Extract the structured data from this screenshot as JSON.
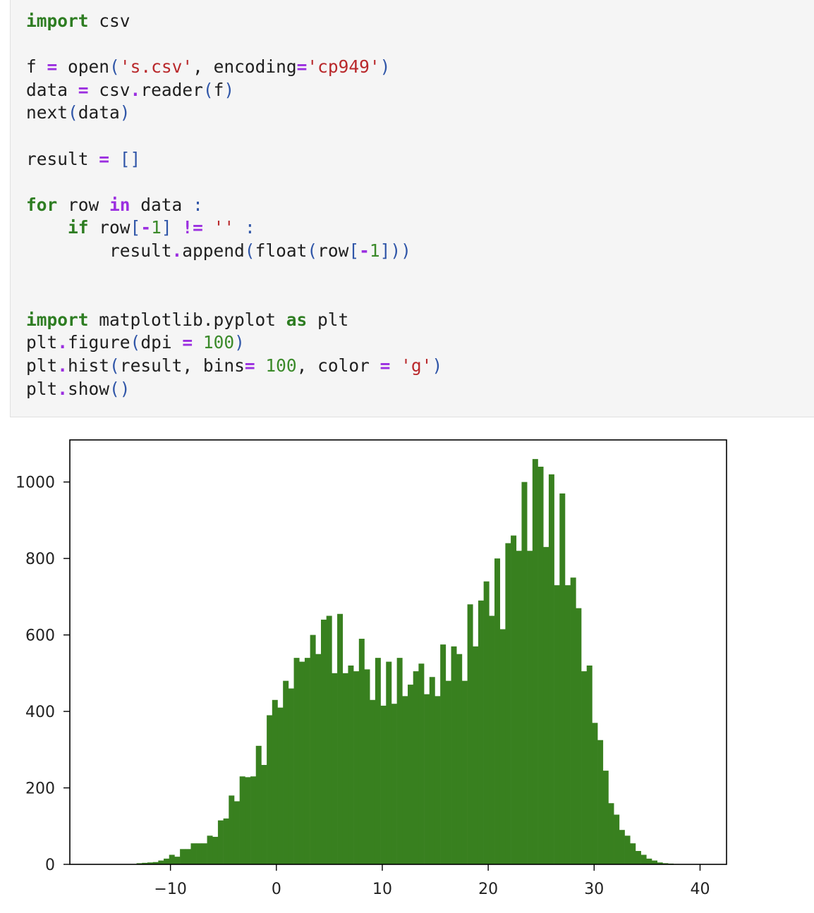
{
  "code_cell": {
    "lines": [
      [
        {
          "t": "import",
          "c": "kw"
        },
        {
          "t": " csv",
          "c": "plain"
        }
      ],
      [],
      [
        {
          "t": "f ",
          "c": "plain"
        },
        {
          "t": "=",
          "c": "op"
        },
        {
          "t": " open",
          "c": "plain"
        },
        {
          "t": "(",
          "c": "pn"
        },
        {
          "t": "'s.csv'",
          "c": "str"
        },
        {
          "t": ", encoding",
          "c": "plain"
        },
        {
          "t": "=",
          "c": "op"
        },
        {
          "t": "'cp949'",
          "c": "str"
        },
        {
          "t": ")",
          "c": "pn"
        }
      ],
      [
        {
          "t": "data ",
          "c": "plain"
        },
        {
          "t": "=",
          "c": "op"
        },
        {
          "t": " csv",
          "c": "plain"
        },
        {
          "t": ".",
          "c": "op"
        },
        {
          "t": "reader",
          "c": "plain"
        },
        {
          "t": "(",
          "c": "pn"
        },
        {
          "t": "f",
          "c": "plain"
        },
        {
          "t": ")",
          "c": "pn"
        }
      ],
      [
        {
          "t": "next",
          "c": "plain"
        },
        {
          "t": "(",
          "c": "pn"
        },
        {
          "t": "data",
          "c": "plain"
        },
        {
          "t": ")",
          "c": "pn"
        }
      ],
      [],
      [
        {
          "t": "result ",
          "c": "plain"
        },
        {
          "t": "=",
          "c": "op"
        },
        {
          "t": " []",
          "c": "pn"
        }
      ],
      [],
      [
        {
          "t": "for",
          "c": "kw"
        },
        {
          "t": " row ",
          "c": "plain"
        },
        {
          "t": "in",
          "c": "kw2"
        },
        {
          "t": " data ",
          "c": "plain"
        },
        {
          "t": ":",
          "c": "pn"
        }
      ],
      [
        {
          "t": "    ",
          "c": "plain"
        },
        {
          "t": "if",
          "c": "kw"
        },
        {
          "t": " row",
          "c": "plain"
        },
        {
          "t": "[",
          "c": "pn"
        },
        {
          "t": "-",
          "c": "op"
        },
        {
          "t": "1",
          "c": "num"
        },
        {
          "t": "]",
          "c": "pn"
        },
        {
          "t": " ",
          "c": "plain"
        },
        {
          "t": "!=",
          "c": "op"
        },
        {
          "t": " ",
          "c": "plain"
        },
        {
          "t": "''",
          "c": "str"
        },
        {
          "t": " ",
          "c": "plain"
        },
        {
          "t": ":",
          "c": "pn"
        }
      ],
      [
        {
          "t": "        result",
          "c": "plain"
        },
        {
          "t": ".",
          "c": "op"
        },
        {
          "t": "append",
          "c": "plain"
        },
        {
          "t": "(",
          "c": "pn"
        },
        {
          "t": "float",
          "c": "plain"
        },
        {
          "t": "(",
          "c": "pn"
        },
        {
          "t": "row",
          "c": "plain"
        },
        {
          "t": "[",
          "c": "pn"
        },
        {
          "t": "-",
          "c": "op"
        },
        {
          "t": "1",
          "c": "num"
        },
        {
          "t": "]))",
          "c": "pn"
        }
      ],
      [],
      [],
      [
        {
          "t": "import",
          "c": "kw"
        },
        {
          "t": " matplotlib.pyplot ",
          "c": "plain"
        },
        {
          "t": "as",
          "c": "kw"
        },
        {
          "t": " plt",
          "c": "plain"
        }
      ],
      [
        {
          "t": "plt",
          "c": "plain"
        },
        {
          "t": ".",
          "c": "op"
        },
        {
          "t": "figure",
          "c": "plain"
        },
        {
          "t": "(",
          "c": "pn"
        },
        {
          "t": "dpi ",
          "c": "plain"
        },
        {
          "t": "=",
          "c": "op"
        },
        {
          "t": " ",
          "c": "plain"
        },
        {
          "t": "100",
          "c": "num"
        },
        {
          "t": ")",
          "c": "pn"
        }
      ],
      [
        {
          "t": "plt",
          "c": "plain"
        },
        {
          "t": ".",
          "c": "op"
        },
        {
          "t": "hist",
          "c": "plain"
        },
        {
          "t": "(",
          "c": "pn"
        },
        {
          "t": "result, bins",
          "c": "plain"
        },
        {
          "t": "=",
          "c": "op"
        },
        {
          "t": " ",
          "c": "plain"
        },
        {
          "t": "100",
          "c": "num"
        },
        {
          "t": ", color ",
          "c": "plain"
        },
        {
          "t": "=",
          "c": "op"
        },
        {
          "t": " ",
          "c": "plain"
        },
        {
          "t": "'g'",
          "c": "str"
        },
        {
          "t": ")",
          "c": "pn"
        }
      ],
      [
        {
          "t": "plt",
          "c": "plain"
        },
        {
          "t": ".",
          "c": "op"
        },
        {
          "t": "show",
          "c": "plain"
        },
        {
          "t": "()",
          "c": "pn"
        }
      ]
    ]
  },
  "chart_data": {
    "type": "bar",
    "bar_color": "#38801f",
    "x_start": -13.2,
    "bin_width": 0.512,
    "values": [
      3,
      4,
      5,
      6,
      10,
      15,
      25,
      20,
      40,
      40,
      55,
      55,
      55,
      75,
      72,
      115,
      120,
      180,
      165,
      230,
      228,
      230,
      310,
      260,
      390,
      430,
      410,
      480,
      460,
      540,
      530,
      540,
      600,
      550,
      640,
      650,
      500,
      655,
      500,
      520,
      505,
      590,
      510,
      430,
      540,
      415,
      530,
      420,
      540,
      440,
      470,
      505,
      525,
      445,
      490,
      440,
      575,
      480,
      570,
      550,
      480,
      680,
      570,
      690,
      740,
      650,
      800,
      615,
      840,
      860,
      820,
      1000,
      820,
      1060,
      1040,
      830,
      1020,
      730,
      970,
      730,
      750,
      670,
      505,
      520,
      370,
      325,
      245,
      160,
      130,
      90,
      75,
      55,
      35,
      25,
      15,
      10,
      5,
      3,
      2,
      1
    ],
    "xlim": [
      -19.5,
      42.5
    ],
    "ylim": [
      0,
      1110
    ],
    "x_ticks": [
      -10,
      0,
      10,
      20,
      30,
      40
    ],
    "x_tick_labels": [
      "−10",
      "0",
      "10",
      "20",
      "30",
      "40"
    ],
    "y_ticks": [
      0,
      200,
      400,
      600,
      800,
      1000
    ],
    "y_tick_labels": [
      "0",
      "200",
      "400",
      "600",
      "800",
      "1000"
    ],
    "grid": false,
    "title": "",
    "xlabel": "",
    "ylabel": ""
  }
}
